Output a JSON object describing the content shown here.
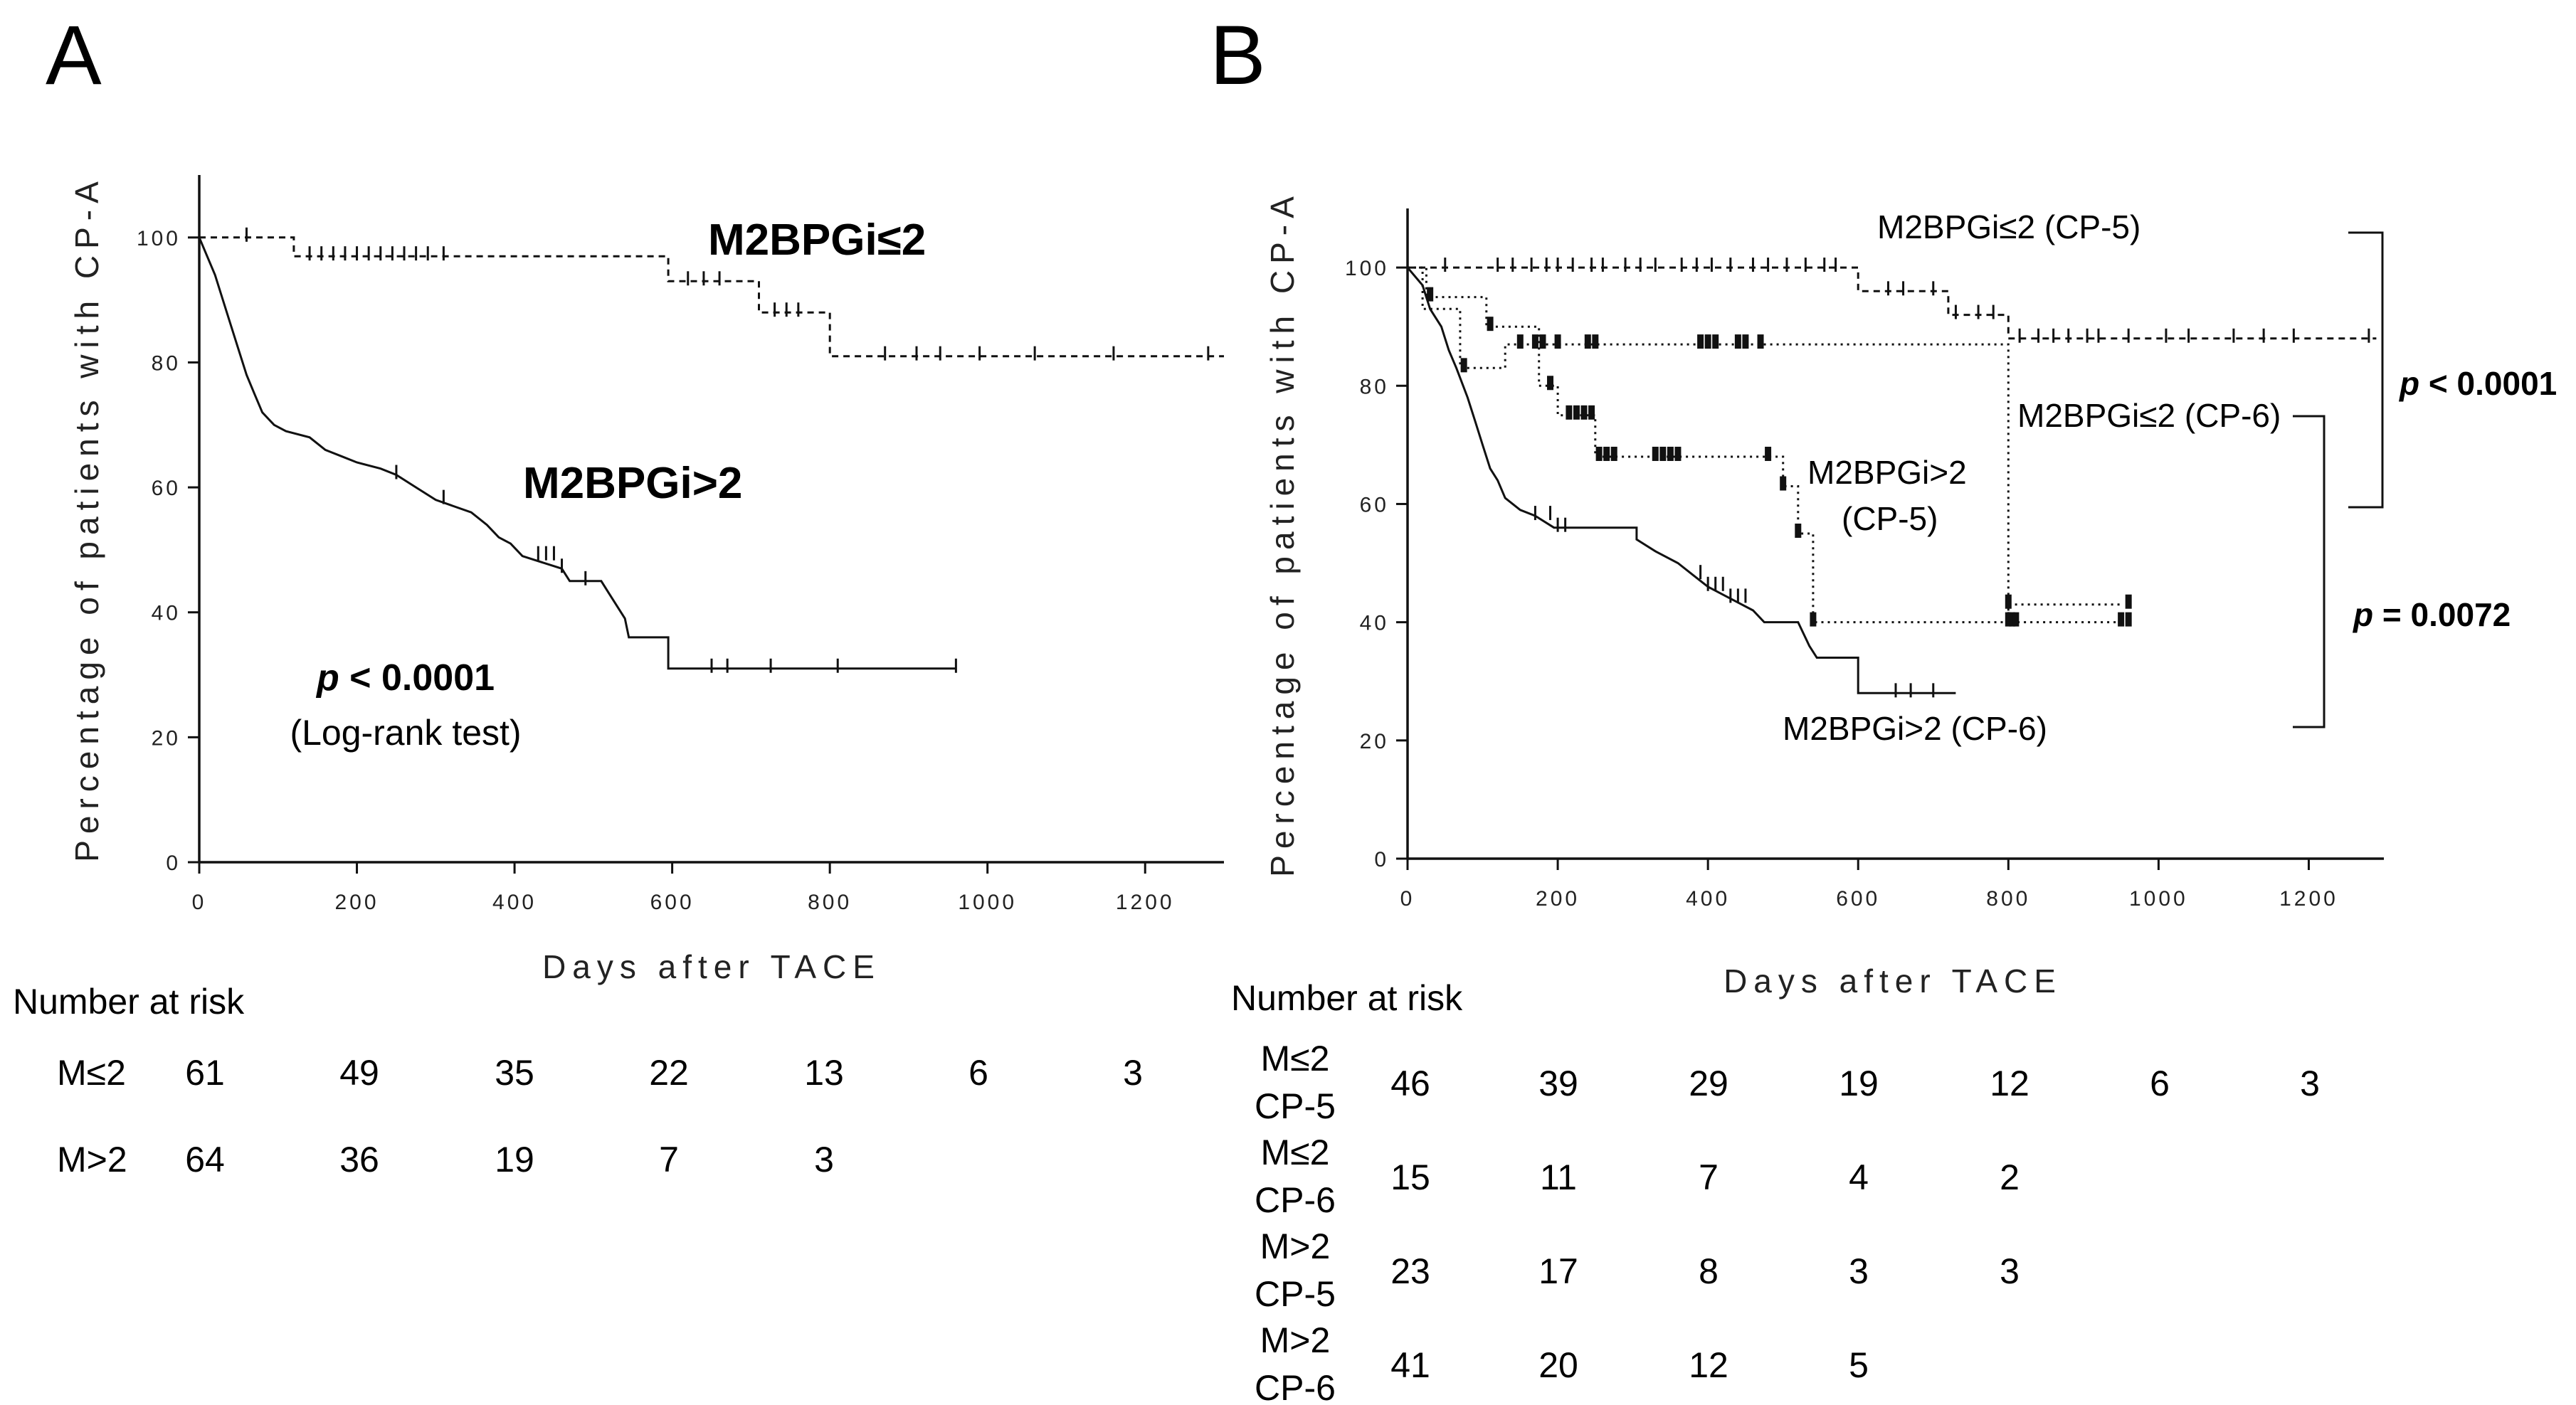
{
  "chart_data": [
    {
      "panel": "A",
      "type": "line",
      "title": "",
      "xlabel": "Days after TACE",
      "ylabel": "Percentage of patients with CP-A",
      "xlim": [
        0,
        1300
      ],
      "ylim": [
        0,
        110
      ],
      "xticks": [
        "0",
        "200",
        "400",
        "600",
        "800",
        "1000",
        "1200"
      ],
      "yticks": [
        "0",
        "20",
        "40",
        "60",
        "80",
        "100"
      ],
      "series": [
        {
          "name": "M2BPGi≤2",
          "style": "dashed",
          "points": [
            [
              0,
              100
            ],
            [
              120,
              100
            ],
            [
              120,
              97
            ],
            [
              595,
              97
            ],
            [
              595,
              93
            ],
            [
              710,
              93
            ],
            [
              710,
              88
            ],
            [
              800,
              88
            ],
            [
              800,
              81
            ],
            [
              1300,
              81
            ]
          ],
          "censor": [
            60,
            140,
            155,
            170,
            185,
            200,
            215,
            230,
            245,
            260,
            275,
            290,
            310,
            620,
            640,
            660,
            730,
            745,
            760,
            870,
            910,
            940,
            990,
            1060,
            1160,
            1280
          ]
        },
        {
          "name": "M2BPGi>2",
          "style": "solid",
          "points": [
            [
              0,
              100
            ],
            [
              10,
              97
            ],
            [
              20,
              94
            ],
            [
              30,
              90
            ],
            [
              40,
              86
            ],
            [
              50,
              82
            ],
            [
              60,
              78
            ],
            [
              70,
              75
            ],
            [
              80,
              72
            ],
            [
              95,
              70
            ],
            [
              110,
              69
            ],
            [
              140,
              68
            ],
            [
              160,
              66
            ],
            [
              180,
              65
            ],
            [
              200,
              64
            ],
            [
              230,
              63
            ],
            [
              250,
              62
            ],
            [
              275,
              60
            ],
            [
              300,
              58
            ],
            [
              345,
              56
            ],
            [
              365,
              54
            ],
            [
              380,
              52
            ],
            [
              395,
              51
            ],
            [
              410,
              49
            ],
            [
              460,
              47
            ],
            [
              470,
              45
            ],
            [
              510,
              45
            ],
            [
              520,
              43
            ],
            [
              540,
              39
            ],
            [
              545,
              36
            ],
            [
              595,
              36
            ],
            [
              595,
              31
            ],
            [
              960,
              31
            ]
          ],
          "censor": [
            250,
            310,
            430,
            440,
            450,
            460,
            490,
            650,
            670,
            725,
            810,
            960
          ]
        }
      ],
      "annotations": {
        "label_top": "M2BPGi≤2",
        "label_bottom": "M2BPGi>2",
        "p_prefix": "p",
        "p_value": " < 0.0001",
        "test": "(Log-rank test)"
      }
    },
    {
      "panel": "B",
      "type": "line",
      "title": "",
      "xlabel": "Days after TACE",
      "ylabel": "Percentage of patients with CP-A",
      "xlim": [
        0,
        1300
      ],
      "ylim": [
        0,
        110
      ],
      "xticks": [
        "0",
        "200",
        "400",
        "600",
        "800",
        "1000",
        "1200"
      ],
      "yticks": [
        "0",
        "20",
        "40",
        "60",
        "80",
        "100"
      ],
      "series": [
        {
          "name": "M2BPGi≤2 (CP-5)",
          "style": "dashed",
          "points": [
            [
              0,
              100
            ],
            [
              600,
              100
            ],
            [
              600,
              96
            ],
            [
              720,
              96
            ],
            [
              720,
              92
            ],
            [
              800,
              92
            ],
            [
              800,
              88
            ],
            [
              1290,
              88
            ]
          ],
          "censor": [
            50,
            120,
            140,
            165,
            185,
            200,
            220,
            245,
            260,
            290,
            310,
            330,
            365,
            385,
            405,
            430,
            460,
            480,
            505,
            530,
            555,
            570,
            640,
            660,
            700,
            730,
            760,
            780,
            815,
            840,
            860,
            880,
            905,
            920,
            960,
            1010,
            1040,
            1100,
            1140,
            1180,
            1280
          ]
        },
        {
          "name": "M2BPGi≤2 (CP-6)",
          "style": "dotted",
          "points": [
            [
              0,
              100
            ],
            [
              20,
              100
            ],
            [
              20,
              93
            ],
            [
              70,
              93
            ],
            [
              70,
              83
            ],
            [
              130,
              83
            ],
            [
              130,
              87
            ],
            [
              800,
              87
            ],
            [
              800,
              40
            ],
            [
              960,
              40
            ]
          ],
          "censor": [
            75,
            150,
            170,
            180,
            200,
            240,
            250,
            390,
            400,
            410,
            440,
            450,
            470,
            800,
            805,
            810,
            950,
            960
          ]
        },
        {
          "name": "M2BPGi>2 (CP-5)",
          "style": "dotted",
          "points": [
            [
              0,
              100
            ],
            [
              25,
              100
            ],
            [
              25,
              95
            ],
            [
              105,
              95
            ],
            [
              105,
              90
            ],
            [
              175,
              90
            ],
            [
              175,
              80
            ],
            [
              200,
              80
            ],
            [
              200,
              75
            ],
            [
              250,
              75
            ],
            [
              250,
              68
            ],
            [
              500,
              68
            ],
            [
              500,
              63
            ],
            [
              520,
              63
            ],
            [
              520,
              55
            ],
            [
              540,
              55
            ],
            [
              540,
              40
            ],
            [
              800,
              40
            ],
            [
              800,
              43
            ],
            [
              950,
              43
            ]
          ],
          "censor": [
            30,
            110,
            190,
            215,
            225,
            235,
            245,
            255,
            265,
            275,
            330,
            340,
            350,
            360,
            480,
            500,
            520,
            540,
            800,
            960
          ]
        },
        {
          "name": "M2BPGi>2 (CP-6)",
          "style": "solid",
          "points": [
            [
              0,
              100
            ],
            [
              20,
              97
            ],
            [
              30,
              93
            ],
            [
              45,
              90
            ],
            [
              55,
              86
            ],
            [
              65,
              83
            ],
            [
              80,
              78
            ],
            [
              90,
              74
            ],
            [
              100,
              70
            ],
            [
              110,
              66
            ],
            [
              120,
              64
            ],
            [
              130,
              61
            ],
            [
              150,
              59
            ],
            [
              170,
              58
            ],
            [
              195,
              56
            ],
            [
              305,
              56
            ],
            [
              305,
              54
            ],
            [
              330,
              52
            ],
            [
              360,
              50
            ],
            [
              380,
              48
            ],
            [
              400,
              46
            ],
            [
              430,
              44
            ],
            [
              460,
              42
            ],
            [
              475,
              40
            ],
            [
              520,
              40
            ],
            [
              535,
              36
            ],
            [
              545,
              34
            ],
            [
              600,
              34
            ],
            [
              600,
              28
            ],
            [
              730,
              28
            ]
          ],
          "censor": [
            170,
            190,
            200,
            210,
            390,
            400,
            410,
            420,
            430,
            440,
            450,
            650,
            670,
            700
          ]
        }
      ],
      "annotations": {
        "label_1": "M2BPGi≤2 (CP-5)",
        "label_2": "M2BPGi≤2 (CP-6)",
        "label_3a": "M2BPGi>2",
        "label_3b": "(CP-5)",
        "label_4": "M2BPGi>2 (CP-6)",
        "p1_prefix": "p",
        "p1_value": " < 0.0001",
        "p2_prefix": "p",
        "p2_value": " = 0.0072"
      }
    }
  ],
  "panels": {
    "a": {
      "letter": "A",
      "risk_header": "Number at risk",
      "rows": [
        {
          "label": "M≤2",
          "values": [
            "61",
            "49",
            "35",
            "22",
            "13",
            "6",
            "3"
          ]
        },
        {
          "label": "M>2",
          "values": [
            "64",
            "36",
            "19",
            "7",
            "3"
          ]
        }
      ]
    },
    "b": {
      "letter": "B",
      "risk_header": "Number at risk",
      "rows": [
        {
          "label1": "M≤2",
          "label2": "CP-5",
          "values": [
            "46",
            "39",
            "29",
            "19",
            "12",
            "6",
            "3"
          ]
        },
        {
          "label1": "M≤2",
          "label2": "CP-6",
          "values": [
            "15",
            "11",
            "7",
            "4",
            "2"
          ]
        },
        {
          "label1": "M>2",
          "label2": "CP-5",
          "values": [
            "23",
            "17",
            "8",
            "3",
            "3"
          ]
        },
        {
          "label1": "M>2",
          "label2": "CP-6",
          "values": [
            "41",
            "20",
            "12",
            "5"
          ]
        }
      ]
    }
  }
}
